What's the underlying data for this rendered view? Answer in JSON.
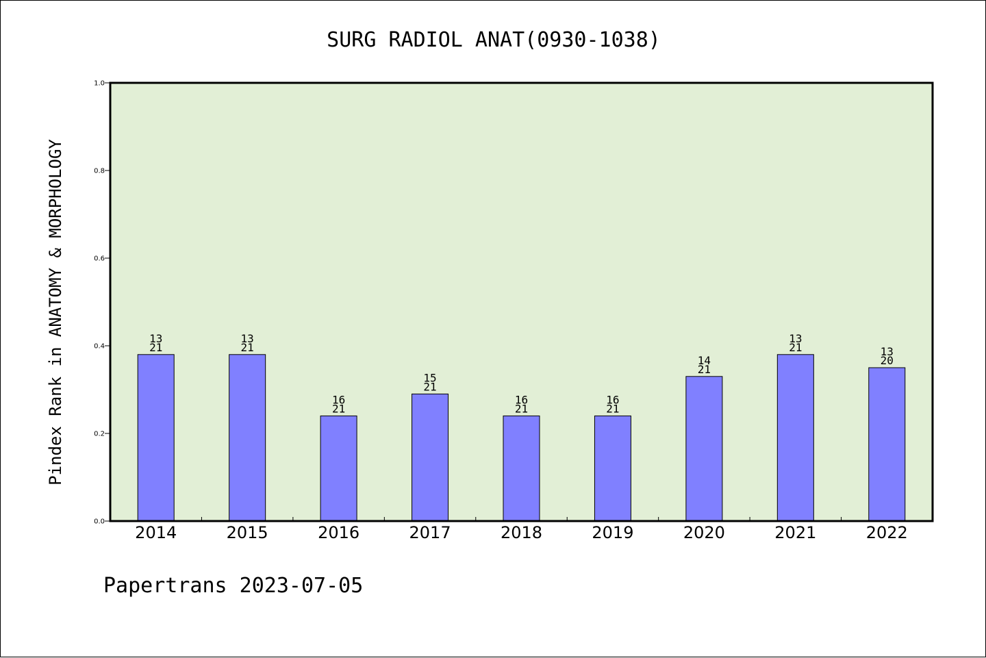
{
  "chart_data": {
    "type": "bar",
    "title": "SURG RADIOL ANAT(0930-1038)",
    "ylabel": "Pindex Rank in ANATOMY & MORPHOLOGY",
    "xlabel": "",
    "ylim": [
      0,
      1.0
    ],
    "yticks": [
      "0.0",
      "0.2",
      "0.4",
      "0.6",
      "0.8",
      "1.0"
    ],
    "categories": [
      "2014",
      "2015",
      "2016",
      "2017",
      "2018",
      "2019",
      "2020",
      "2021",
      "2022"
    ],
    "values": [
      0.38,
      0.38,
      0.24,
      0.29,
      0.24,
      0.24,
      0.33,
      0.38,
      0.35
    ],
    "rank_labels": [
      "13",
      "13",
      "16",
      "15",
      "16",
      "16",
      "14",
      "13",
      "13"
    ],
    "total_labels": [
      "21",
      "21",
      "21",
      "21",
      "21",
      "21",
      "21",
      "21",
      "20"
    ],
    "grid": false,
    "colors": {
      "bar": "#8080ff",
      "plot_background": "#e2efd6",
      "axis": "#000000"
    }
  },
  "footer": {
    "text": "Papertrans 2023-07-05"
  }
}
